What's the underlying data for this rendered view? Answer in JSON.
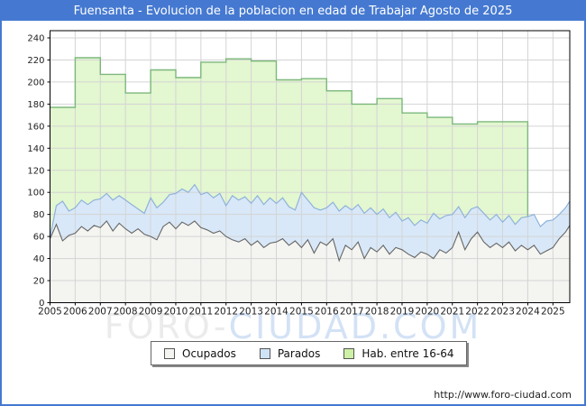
{
  "title_bar": {
    "text": "Fuensanta - Evolucion de la poblacion en edad de Trabajar Agosto de 2025"
  },
  "watermark": {
    "part1": "FORO",
    "separator": "-",
    "part2": "CIUDAD.COM",
    "part1_color": "#ebebeb",
    "part2_color": "#d3e2f5"
  },
  "footer": {
    "url": "http://www.foro-ciudad.com"
  },
  "legend": {
    "items": [
      {
        "label": "Ocupados",
        "swatch_fill": "#f4f4f1"
      },
      {
        "label": "Parados",
        "swatch_fill": "#cfe3f6"
      },
      {
        "label": "Hab. entre 16-64",
        "swatch_fill": "#cdf0a7"
      }
    ]
  },
  "colors": {
    "accent_blue": "#4579d1",
    "gridline": "#d4d4d4",
    "plot_border": "#000000",
    "tick_text": "#222222"
  },
  "chart_data": {
    "type": "area",
    "title": "Fuensanta - Evolucion de la poblacion en edad de Trabajar Agosto de 2025",
    "grid": true,
    "legend_position": "bottom",
    "x_axis": {
      "start": 2005,
      "end": 2025.67,
      "tick_labels": [
        "2005",
        "2006",
        "2007",
        "2008",
        "2009",
        "2010",
        "2011",
        "2012",
        "2013",
        "2014",
        "2015",
        "2016",
        "2017",
        "2018",
        "2019",
        "2020",
        "2021",
        "2022",
        "2023",
        "2024",
        "2025"
      ]
    },
    "y_axis": {
      "min": 0,
      "max": 246,
      "tick_interval": 20,
      "tick_labels": [
        "0",
        "20",
        "40",
        "60",
        "80",
        "100",
        "120",
        "140",
        "160",
        "180",
        "200",
        "220",
        "240"
      ]
    },
    "series": [
      {
        "name": "Hab. entre 16-64",
        "shape": "annual-steps",
        "fill": "#e3f7d0",
        "line": "#7cb87c",
        "years": [
          2005,
          2006,
          2007,
          2008,
          2009,
          2010,
          2011,
          2012,
          2013,
          2014,
          2015,
          2016,
          2017,
          2018,
          2019,
          2020,
          2021,
          2022,
          2023
        ],
        "values": [
          177,
          222,
          207,
          190,
          211,
          204,
          218,
          221,
          219,
          202,
          203,
          192,
          180,
          185,
          172,
          168,
          162,
          164,
          164
        ],
        "data_ends": 2024
      },
      {
        "name": "Parados",
        "shape": "monthly-noisy",
        "stacking_note": "values are the upper boundary of the blue band (Ocupados+Parados)",
        "fill": "#d8e8f8",
        "line": "#8fb2da",
        "x_start": 2005,
        "x_step": 0.25,
        "values": [
          59,
          88,
          92,
          83,
          86,
          93,
          89,
          93,
          94,
          99,
          93,
          97,
          93,
          89,
          85,
          81,
          95,
          86,
          91,
          98,
          99,
          103,
          100,
          107,
          98,
          100,
          95,
          99,
          88,
          97,
          93,
          96,
          90,
          97,
          89,
          95,
          90,
          95,
          87,
          84,
          100,
          93,
          86,
          84,
          86,
          91,
          83,
          88,
          84,
          89,
          81,
          86,
          80,
          85,
          77,
          82,
          74,
          77,
          70,
          75,
          72,
          81,
          76,
          79,
          80,
          87,
          77,
          85,
          87,
          81,
          75,
          80,
          73,
          79,
          71,
          77,
          78,
          80,
          69,
          74,
          75,
          80,
          86,
          92
        ]
      },
      {
        "name": "Ocupados",
        "shape": "monthly-noisy",
        "fill": "#f4f4f1",
        "line": "#666666",
        "x_start": 2005,
        "x_step": 0.25,
        "values": [
          58,
          71,
          56,
          61,
          63,
          69,
          65,
          70,
          68,
          74,
          65,
          72,
          67,
          63,
          67,
          62,
          60,
          57,
          69,
          73,
          67,
          73,
          70,
          74,
          68,
          66,
          63,
          65,
          60,
          57,
          55,
          58,
          52,
          56,
          50,
          54,
          55,
          58,
          52,
          56,
          50,
          57,
          45,
          55,
          52,
          58,
          38,
          52,
          48,
          55,
          40,
          50,
          46,
          52,
          44,
          50,
          48,
          44,
          41,
          46,
          44,
          40,
          48,
          45,
          50,
          64,
          48,
          58,
          64,
          55,
          50,
          54,
          50,
          55,
          47,
          52,
          48,
          52,
          44,
          47,
          50,
          58,
          64,
          70
        ]
      }
    ]
  }
}
